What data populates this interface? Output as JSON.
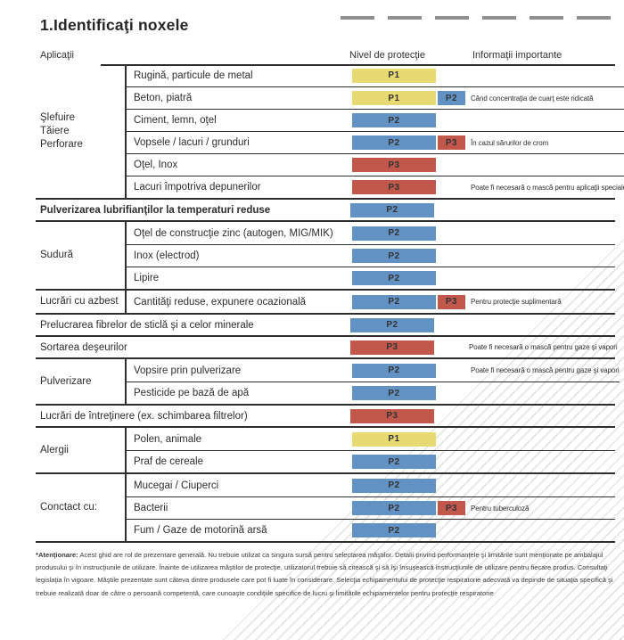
{
  "title": "1.Identificaţi noxele",
  "columns": {
    "applications": "Aplicaţii",
    "protection_level": "Nivel de protecţie",
    "important_info": "Informaţii importante"
  },
  "level_colors": {
    "P1": "#e7da72",
    "P2": "#6292c3",
    "P3": "#c1584b"
  },
  "sections": [
    {
      "type": "group",
      "category": "Şlefuire\nTăiere\nPerforare",
      "rows": [
        {
          "label": "Rugină, particule de metal",
          "level": "P1"
        },
        {
          "label": "Beton, piatră",
          "level": "P1",
          "level2": "P2",
          "note": "Când concentraţia de cuarţ este ridicată"
        },
        {
          "label": "Ciment, lemn, oţel",
          "level": "P2"
        },
        {
          "label": "Vopsele / lacuri / grunduri",
          "level": "P2",
          "level2": "P3",
          "note": "În cazul sărurilor de crom"
        },
        {
          "label": "Oţel, Inox",
          "level": "P3"
        },
        {
          "label": "Lacuri împotriva depunerilor",
          "level": "P3",
          "note": "Poate fi necesară o mască pentru aplicaţii speciale"
        }
      ]
    },
    {
      "type": "full",
      "label": "Pulverizarea lubrifianţilor la temperaturi reduse",
      "level": "P2"
    },
    {
      "type": "group",
      "category": "Sudură",
      "rows": [
        {
          "label": "Oţel de construcţie zinc (autogen, MIG/MIK)",
          "level": "P2"
        },
        {
          "label": "Inox (electrod)",
          "level": "P2"
        },
        {
          "label": "Lipire",
          "level": "P2"
        }
      ]
    },
    {
      "type": "group",
      "category": "Lucrări cu azbest",
      "rows": [
        {
          "label": "Cantităţi reduse, expunere ocazională",
          "level": "P2",
          "level2": "P3",
          "note": "Pentru protecţie suplimentară"
        }
      ]
    },
    {
      "type": "full",
      "label": "Prelucrarea fibrelor de sticlă şi a celor minerale",
      "level": "P2"
    },
    {
      "type": "full",
      "label": "Sortarea deşeurilor",
      "level": "P3",
      "note": "Poate fi necesară o mască pentru gaze şi vapori"
    },
    {
      "type": "group",
      "category": "Pulverizare",
      "rows": [
        {
          "label": "Vopsire prin pulverizare",
          "level": "P2",
          "note": "Poate fi necesară o mască pentru gaze şi vapori"
        },
        {
          "label": "Pesticide pe bază de apă",
          "level": "P2"
        }
      ]
    },
    {
      "type": "full",
      "label": "Lucrări de întreţinere (ex. schimbarea filtrelor)",
      "level": "P3"
    },
    {
      "type": "group",
      "category": "Alergii",
      "rows": [
        {
          "label": "Polen, animale",
          "level": "P1"
        },
        {
          "label": "Praf de cereale",
          "level": "P2"
        }
      ]
    },
    {
      "type": "group",
      "category": "Conctact cu:",
      "rows": [
        {
          "label": "Mucegai / Ciuperci",
          "level": "P2"
        },
        {
          "label": "Bacterii",
          "level": "P2",
          "level2": "P3",
          "note": "Pentru tuberculoză"
        },
        {
          "label": "Fum / Gaze de motorină arsă",
          "level": "P2"
        }
      ]
    }
  ],
  "footer": {
    "label": "*Atenţionare:",
    "text": "Acest ghid are rol de prezentare generală. Nu trebuie utilizat ca singura sursă pentru selectarea măştilor. Detalii privind performanţele şi limitările sunt menţionate pe ambalajul produsului şi în instrucţiunile de utilizare. Înainte de utilizarea măştilor de protecţie, utilizatorul trebuie să citească şi să îşi însuşească instrucţiunile de utilizare pentru fiecare produs. Consultaţi legislaţia în vigoare. Măştile prezentate sunt câteva dintre produsele care pot fi luate în considerare. Selecţia echipamentului de protecţie respiratorie adecvată va depinde de situaţia specifică şi trebuie realizată doar de către o persoană competentă, care cunoaşte condiţiile specifice de lucru şi limitările echipamentelor pentru protecţie respiratorie"
  }
}
